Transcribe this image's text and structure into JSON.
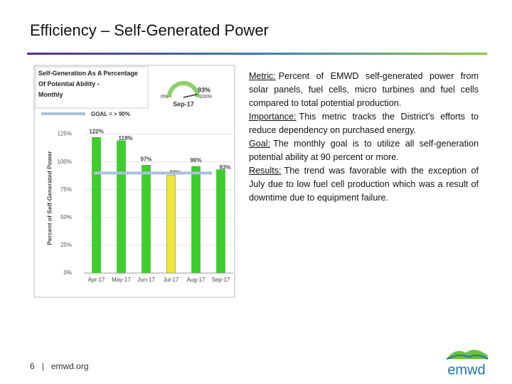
{
  "header": {
    "title": "Efficiency – Self-Generated Power"
  },
  "chart_data": {
    "type": "bar",
    "title": "Self-Generation As A Percentage Of Potential Ability - Monthly",
    "y_label": "Percent of Self-Generated Power",
    "categories": [
      "Apr-17",
      "May-17",
      "Jun-17",
      "Jul-17",
      "Aug-17",
      "Sep-17"
    ],
    "values": [
      122,
      119,
      97,
      88,
      96,
      93
    ],
    "value_labels": [
      "122%",
      "119%",
      "97%",
      "88%",
      "96%",
      "93%"
    ],
    "colors": [
      "#3ccf2a",
      "#3ccf2a",
      "#3ccf2a",
      "#f0e63a",
      "#3ccf2a",
      "#3ccf2a"
    ],
    "ylim": [
      0,
      135
    ],
    "yticks": [
      {
        "value": 0,
        "label": "0%"
      },
      {
        "value": 25,
        "label": "25%"
      },
      {
        "value": 50,
        "label": "50%"
      },
      {
        "value": 75,
        "label": "75%"
      },
      {
        "value": 100,
        "label": "100%"
      },
      {
        "value": 125,
        "label": "125%"
      }
    ],
    "grid": true,
    "goal": {
      "value": 90,
      "label": "GOAL = > 90%",
      "color": "#a9c1dc"
    },
    "gauge": {
      "label": "Sep-17",
      "min": {
        "value": 0,
        "label": "0%"
      },
      "max": {
        "value": 100,
        "label": "100%"
      },
      "value": 93,
      "value_label": "93%"
    }
  },
  "body": {
    "items": [
      {
        "label": "Metric:",
        "text": "Percent of EMWD self-generated power from solar panels, fuel cells, micro turbines and fuel cells compared to total potential production."
      },
      {
        "label": "Importance:",
        "text": "This metric tracks the District’s efforts to reduce dependency on purchased energy."
      },
      {
        "label": "Goal:",
        "text": "The monthly goal is to utilize all self-generation potential ability at 90 percent or more."
      },
      {
        "label": "Results:",
        "text": "The trend was favorable with the exception of July due to low fuel cell production which was a result of downtime due to equipment failure."
      }
    ]
  },
  "footer": {
    "page": "6",
    "separator": "|",
    "site": "emwd.org",
    "logo": "emwd"
  }
}
